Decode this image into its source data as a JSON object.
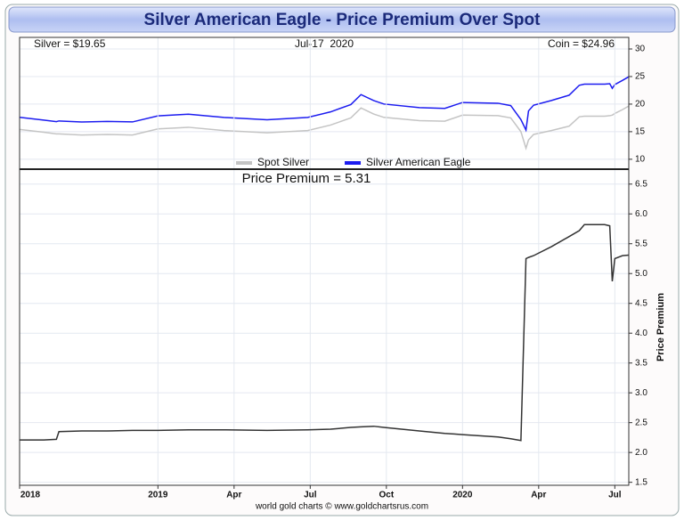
{
  "header": {
    "title": "Silver American Eagle - Price Premium Over Spot"
  },
  "footer": "world gold charts © www.goldchartsrus.com",
  "chart_data": [
    {
      "type": "line",
      "annotations": [
        "Silver = $19.65",
        "Jul-17  2020",
        "Coin = $24.96"
      ],
      "x": [
        6.55,
        7.5,
        8.0,
        8.1,
        9,
        10,
        11,
        12,
        13.2,
        14.6,
        16.3,
        17.9,
        18.8,
        19.6,
        20,
        20.5,
        20.9,
        22.3,
        23.3,
        24,
        25.4,
        25.9,
        26.3,
        26.5,
        26.6,
        26.8,
        27.5,
        28.2,
        28.6,
        28.8,
        29.6,
        29.8,
        29.9,
        30,
        30.3,
        30.55
      ],
      "xlim": [
        6.55,
        30.55
      ],
      "ylim": [
        8.2,
        32.1
      ],
      "yticks": [
        10,
        15,
        20,
        25,
        30
      ],
      "grid": true,
      "legend": "lower center",
      "series": [
        {
          "name": "Spot Silver",
          "color": "#c4c4c4",
          "values": [
            15.4,
            14.9,
            14.6,
            14.6,
            14.4,
            14.5,
            14.4,
            15.5,
            15.8,
            15.2,
            14.8,
            15.2,
            16.2,
            17.5,
            19.3,
            18.2,
            17.6,
            17.0,
            16.9,
            18.0,
            17.9,
            17.5,
            15.0,
            12.0,
            13.5,
            14.5,
            15.2,
            16.0,
            17.7,
            17.8,
            17.8,
            17.9,
            18.0,
            18.3,
            19.0,
            19.65
          ]
        },
        {
          "name": "Silver American Eagle",
          "color": "#1c1cf0",
          "values": [
            17.61,
            17.11,
            16.82,
            16.95,
            16.76,
            16.86,
            16.77,
            17.87,
            18.18,
            17.58,
            17.17,
            17.58,
            18.59,
            19.92,
            21.73,
            20.64,
            20.02,
            19.36,
            19.22,
            20.3,
            20.16,
            19.73,
            17.2,
            15.3,
            18.77,
            19.8,
            20.65,
            21.62,
            23.42,
            23.62,
            23.62,
            23.7,
            22.87,
            23.55,
            24.3,
            24.96
          ]
        }
      ]
    },
    {
      "type": "line",
      "annotations": [
        "Price Premium = 5.31"
      ],
      "ylabel": "Price Premium",
      "x": [
        6.55,
        7.5,
        8.0,
        8.1,
        9,
        10,
        11,
        12,
        13.2,
        14.6,
        16.3,
        17.9,
        18.8,
        19.6,
        20,
        20.5,
        20.9,
        22.3,
        23.3,
        24,
        25.4,
        25.9,
        26.3,
        26.5,
        26.6,
        26.8,
        27.5,
        28.2,
        28.6,
        28.8,
        29.6,
        29.8,
        29.9,
        30,
        30.3,
        30.55
      ],
      "values": [
        2.21,
        2.21,
        2.22,
        2.35,
        2.36,
        2.36,
        2.37,
        2.37,
        2.38,
        2.38,
        2.37,
        2.38,
        2.39,
        2.42,
        2.43,
        2.44,
        2.42,
        2.36,
        2.32,
        2.3,
        2.26,
        2.23,
        2.2,
        5.25,
        5.27,
        5.3,
        5.45,
        5.62,
        5.72,
        5.82,
        5.82,
        5.8,
        4.87,
        5.25,
        5.3,
        5.31
      ],
      "color": "#333333",
      "xlim": [
        6.55,
        30.55
      ],
      "xticks": [
        {
          "value": 6.55,
          "label": "2018"
        },
        {
          "value": 12,
          "label": "2019"
        },
        {
          "value": 15,
          "label": "Apr"
        },
        {
          "value": 18,
          "label": "Jul"
        },
        {
          "value": 21,
          "label": "Oct"
        },
        {
          "value": 24,
          "label": "2020"
        },
        {
          "value": 27,
          "label": "Apr"
        },
        {
          "value": 30,
          "label": "Jul"
        }
      ],
      "ylim": [
        1.45,
        6.75
      ],
      "yticks": [
        1.5,
        {
          "value": 2,
          "label": "2.0"
        },
        2.5,
        {
          "value": 3,
          "label": "3.0"
        },
        3.5,
        {
          "value": 4,
          "label": "4.0"
        },
        4.5,
        {
          "value": 5,
          "label": "5.0"
        },
        5.5,
        {
          "value": 6,
          "label": "6.0"
        },
        6.5
      ],
      "grid": true
    }
  ]
}
